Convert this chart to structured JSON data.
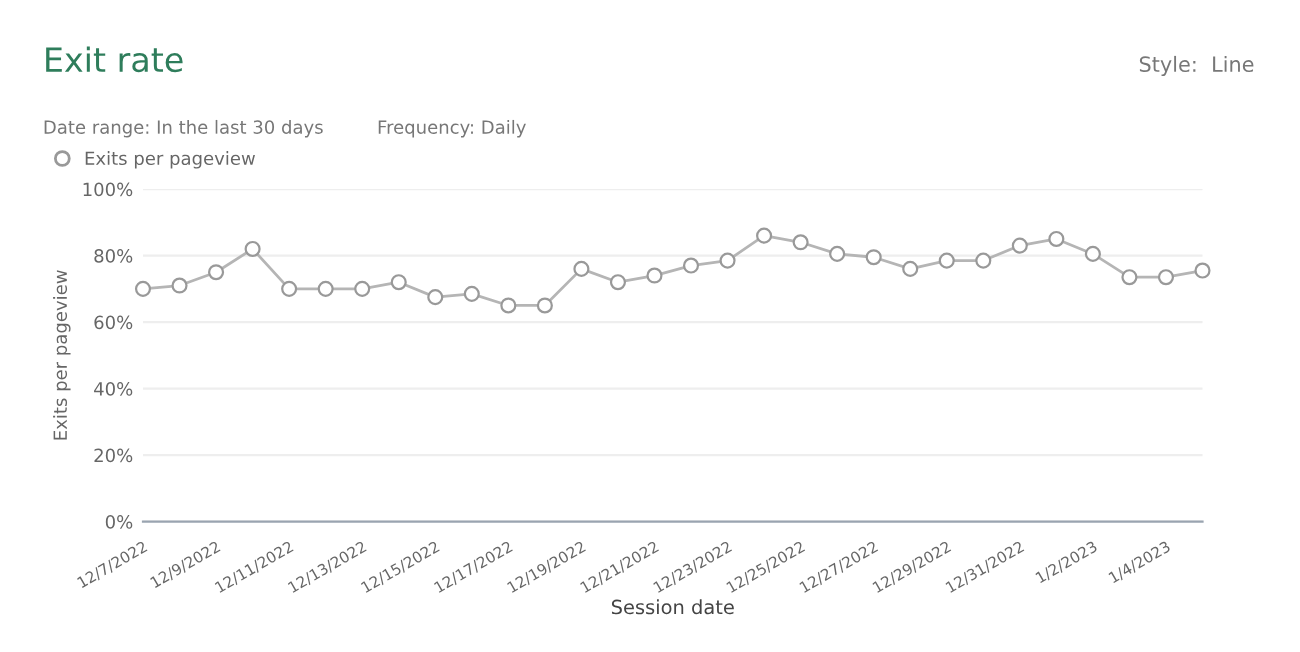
{
  "chart_data": {
    "type": "line",
    "title": "Exit rate",
    "xlabel": "Session date",
    "ylabel": "Exits per pageview",
    "annotations": [
      "Date range: In the last 30 days",
      "Frequency: Daily",
      "Style:  Line"
    ],
    "x": [
      "2022-12-07",
      "2022-12-08",
      "2022-12-09",
      "2022-12-10",
      "2022-12-11",
      "2022-12-12",
      "2022-12-13",
      "2022-12-14",
      "2022-12-15",
      "2022-12-16",
      "2022-12-17",
      "2022-12-18",
      "2022-12-19",
      "2022-12-20",
      "2022-12-21",
      "2022-12-22",
      "2022-12-23",
      "2022-12-24",
      "2022-12-25",
      "2022-12-26",
      "2022-12-27",
      "2022-12-28",
      "2022-12-29",
      "2022-12-30",
      "2022-12-31",
      "2023-01-01",
      "2023-01-02",
      "2023-01-03",
      "2023-01-04",
      "2023-01-05"
    ],
    "series": [
      {
        "name": "Exits per pageview",
        "color": "#b5b5b5",
        "values": [
          70,
          71,
          75,
          82,
          70,
          70,
          70,
          72,
          67.5,
          68.5,
          65,
          65,
          76,
          72,
          74,
          77,
          78.5,
          86,
          84,
          80.5,
          79.5,
          76,
          78.5,
          78.5,
          83,
          85,
          80.5,
          73.5,
          73.5,
          75.5
        ]
      }
    ],
    "ylim": [
      0,
      100
    ],
    "yticks": [
      {
        "value": 0,
        "label": "0%"
      },
      {
        "value": 20,
        "label": "20%"
      },
      {
        "value": 40,
        "label": "40%"
      },
      {
        "value": 60,
        "label": "60%"
      },
      {
        "value": 80,
        "label": "80%"
      },
      {
        "value": 100,
        "label": "100%"
      }
    ],
    "xlim": [
      "2022-12-07",
      "2023-01-05"
    ],
    "xticks": [
      {
        "value": "2022-12-07",
        "label": "12/7/2022"
      },
      {
        "value": "2022-12-09",
        "label": "12/9/2022"
      },
      {
        "value": "2022-12-11",
        "label": "12/11/2022"
      },
      {
        "value": "2022-12-13",
        "label": "12/13/2022"
      },
      {
        "value": "2022-12-15",
        "label": "12/15/2022"
      },
      {
        "value": "2022-12-17",
        "label": "12/17/2022"
      },
      {
        "value": "2022-12-19",
        "label": "12/19/2022"
      },
      {
        "value": "2022-12-21",
        "label": "12/21/2022"
      },
      {
        "value": "2022-12-23",
        "label": "12/23/2022"
      },
      {
        "value": "2022-12-25",
        "label": "12/25/2022"
      },
      {
        "value": "2022-12-27",
        "label": "12/27/2022"
      },
      {
        "value": "2022-12-29",
        "label": "12/29/2022"
      },
      {
        "value": "2022-12-31",
        "label": "12/31/2022"
      },
      {
        "value": "2023-01-02",
        "label": "1/2/2023"
      },
      {
        "value": "2023-01-04",
        "label": "1/4/2023"
      }
    ],
    "grid": "y",
    "legend": "top left",
    "marker": "circle",
    "line_style": "solid"
  }
}
